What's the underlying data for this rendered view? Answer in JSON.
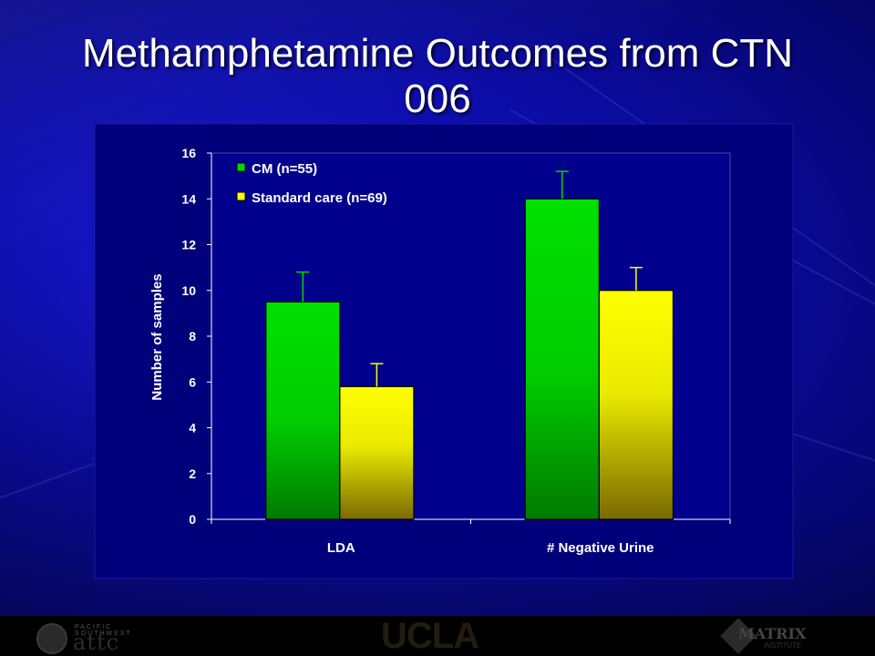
{
  "slide": {
    "title_line1": "Methamphetamine Outcomes from CTN",
    "title_line2": "006"
  },
  "footer": {
    "logos": [
      "attc",
      "UCLA",
      "MATRIX"
    ]
  },
  "chart_data": {
    "type": "bar",
    "categories": [
      "LDA",
      "# Negative Urine"
    ],
    "series": [
      {
        "name": "CM (n=55)",
        "values": [
          9.5,
          14.0
        ],
        "errors": [
          1.3,
          1.2
        ],
        "color": "#00d800"
      },
      {
        "name": "Standard care (n=69)",
        "values": [
          5.8,
          10.0
        ],
        "errors": [
          1.0,
          1.0
        ],
        "color": "#ffff00"
      }
    ],
    "ylabel": "Number of samples",
    "xlabel": "",
    "ylim": [
      0,
      16
    ],
    "yticks": [
      0,
      2,
      4,
      6,
      8,
      10,
      12,
      14,
      16
    ],
    "legend": "top-left",
    "grid": false
  }
}
